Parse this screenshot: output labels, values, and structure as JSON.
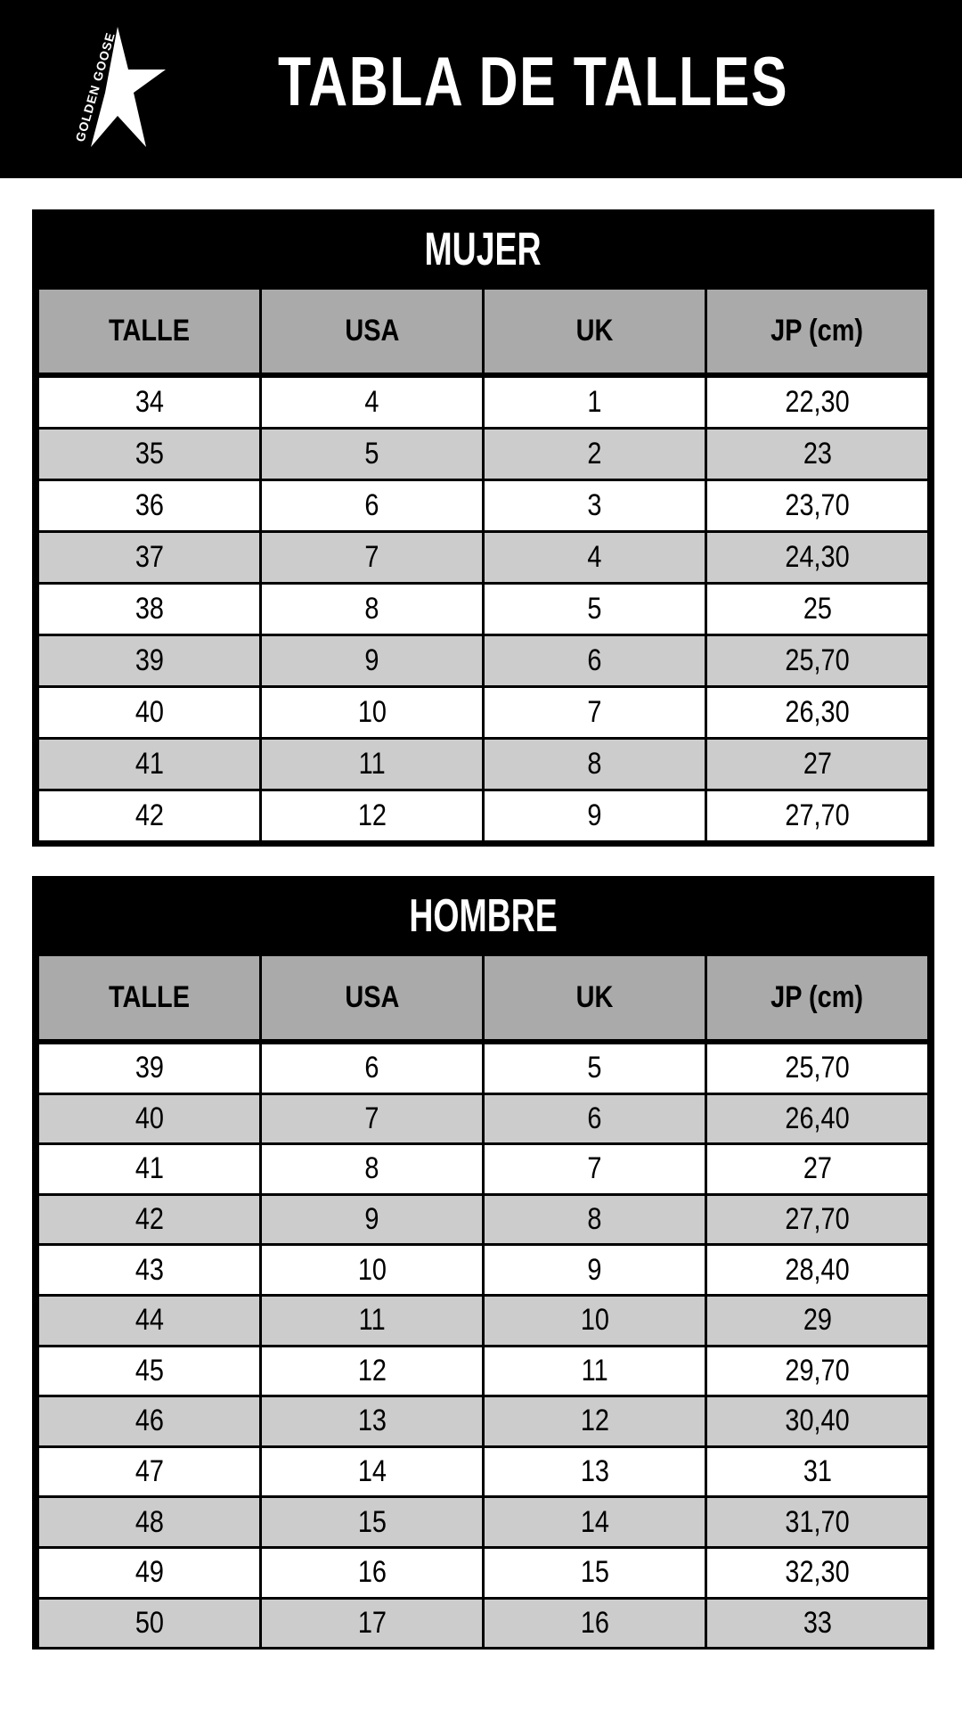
{
  "header": {
    "title": "TABLA DE TALLES",
    "logo_text": "GOLDEN GOOSE",
    "logo_icon": "star-icon"
  },
  "tables": [
    {
      "title": "MUJER",
      "columns": [
        "TALLE",
        "USA",
        "UK",
        "JP (cm)"
      ],
      "rows": [
        [
          "34",
          "4",
          "1",
          "22,30"
        ],
        [
          "35",
          "5",
          "2",
          "23"
        ],
        [
          "36",
          "6",
          "3",
          "23,70"
        ],
        [
          "37",
          "7",
          "4",
          "24,30"
        ],
        [
          "38",
          "8",
          "5",
          "25"
        ],
        [
          "39",
          "9",
          "6",
          "25,70"
        ],
        [
          "40",
          "10",
          "7",
          "26,30"
        ],
        [
          "41",
          "11",
          "8",
          "27"
        ],
        [
          "42",
          "12",
          "9",
          "27,70"
        ]
      ]
    },
    {
      "title": "HOMBRE",
      "columns": [
        "TALLE",
        "USA",
        "UK",
        "JP (cm)"
      ],
      "rows": [
        [
          "39",
          "6",
          "5",
          "25,70"
        ],
        [
          "40",
          "7",
          "6",
          "26,40"
        ],
        [
          "41",
          "8",
          "7",
          "27"
        ],
        [
          "42",
          "9",
          "8",
          "27,70"
        ],
        [
          "43",
          "10",
          "9",
          "28,40"
        ],
        [
          "44",
          "11",
          "10",
          "29"
        ],
        [
          "45",
          "12",
          "11",
          "29,70"
        ],
        [
          "46",
          "13",
          "12",
          "30,40"
        ],
        [
          "47",
          "14",
          "13",
          "31"
        ],
        [
          "48",
          "15",
          "14",
          "31,70"
        ],
        [
          "49",
          "16",
          "15",
          "32,30"
        ],
        [
          "50",
          "17",
          "16",
          "33"
        ]
      ]
    }
  ],
  "colors": {
    "header_bg": "#000000",
    "column_header_bg": "#aaaaaa",
    "row_alt_bg": "#cccccc",
    "row_bg": "#ffffff"
  }
}
